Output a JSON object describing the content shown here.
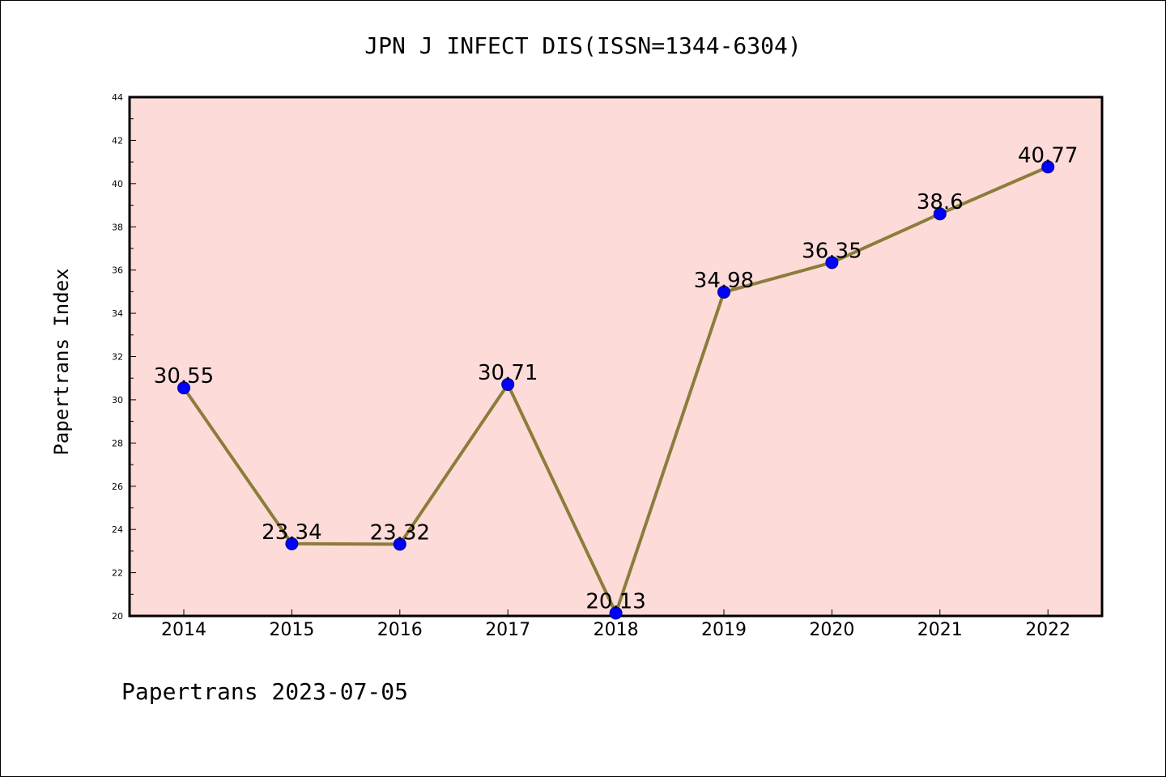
{
  "chart_data": {
    "type": "line",
    "title": "JPN J INFECT DIS(ISSN=1344-6304)",
    "xlabel": "",
    "ylabel": "Papertrans Index",
    "categories": [
      "2014",
      "2015",
      "2016",
      "2017",
      "2018",
      "2019",
      "2020",
      "2021",
      "2022"
    ],
    "values": [
      30.55,
      23.34,
      23.32,
      30.71,
      20.13,
      34.98,
      36.35,
      38.6,
      40.77
    ],
    "data_labels": [
      "30.55",
      "23.34",
      "23.32",
      "30.71",
      "20.13",
      "34.98",
      "36.35",
      "38.6",
      "40.77"
    ],
    "ylim": [
      20,
      44
    ],
    "yticks": [
      20,
      22,
      24,
      26,
      28,
      30,
      32,
      34,
      36,
      38,
      40,
      42,
      44
    ],
    "grid": false,
    "colors": {
      "plot_background": "#fddbd9",
      "line": "#8b7d3a",
      "marker_fill": "#0000ff",
      "marker_edge": "#00008b"
    }
  },
  "footer": "Papertrans 2023-07-05"
}
